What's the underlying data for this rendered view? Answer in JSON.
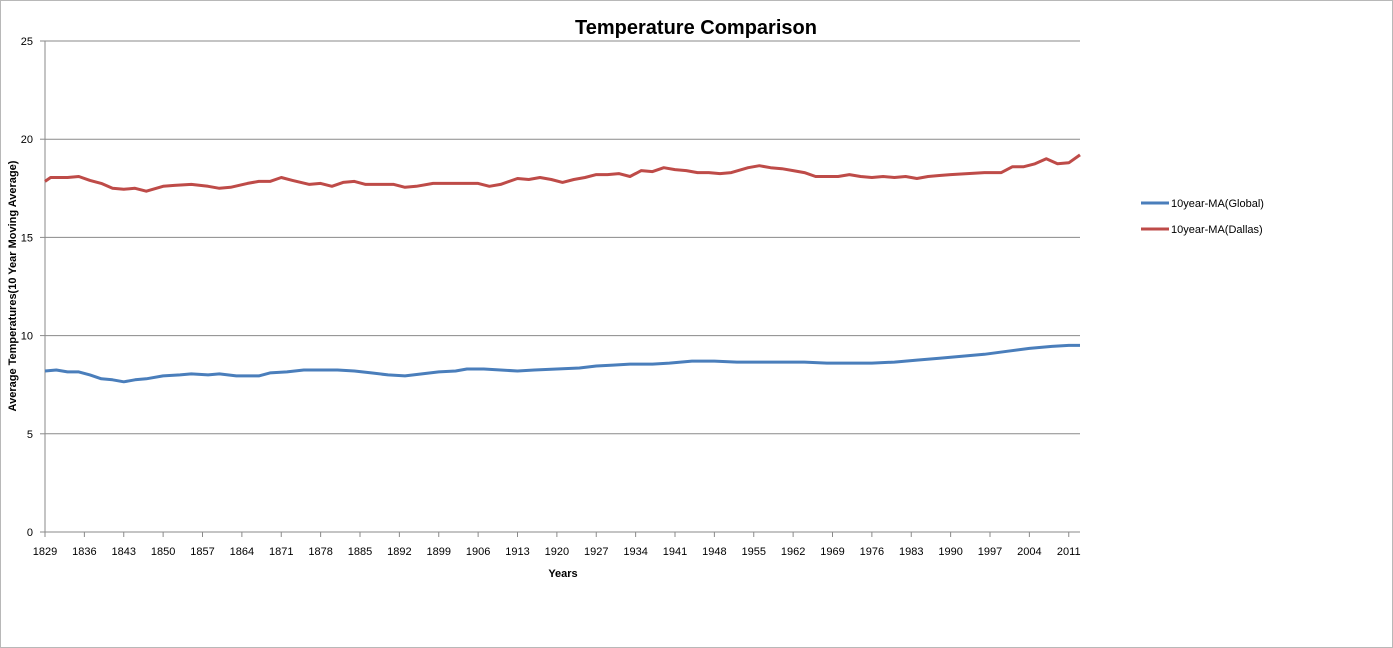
{
  "chart_data": {
    "type": "line",
    "title": "Temperature Comparison",
    "xlabel": "Years",
    "ylabel": "Average Temperatures(10 Year Moving Average)",
    "ylim": [
      0,
      25
    ],
    "yticks": [
      "0",
      "5",
      "10",
      "15",
      "20",
      "25"
    ],
    "xlim": [
      1829,
      2013
    ],
    "xticks": [
      "1829",
      "1836",
      "1843",
      "1850",
      "1857",
      "1864",
      "1871",
      "1878",
      "1885",
      "1892",
      "1899",
      "1906",
      "1913",
      "1920",
      "1927",
      "1934",
      "1941",
      "1948",
      "1955",
      "1962",
      "1969",
      "1976",
      "1983",
      "1990",
      "1997",
      "2004",
      "2011"
    ],
    "grid": "horizontal",
    "legend": "right",
    "series": [
      {
        "name": "10year-MA(Global)",
        "color": "#4a7ebb",
        "points": [
          [
            1829,
            8.2
          ],
          [
            1831,
            8.25
          ],
          [
            1833,
            8.15
          ],
          [
            1835,
            8.15
          ],
          [
            1837,
            8.0
          ],
          [
            1839,
            7.8
          ],
          [
            1841,
            7.75
          ],
          [
            1843,
            7.65
          ],
          [
            1845,
            7.75
          ],
          [
            1847,
            7.8
          ],
          [
            1850,
            7.95
          ],
          [
            1853,
            8.0
          ],
          [
            1855,
            8.05
          ],
          [
            1858,
            8.0
          ],
          [
            1860,
            8.05
          ],
          [
            1863,
            7.95
          ],
          [
            1867,
            7.95
          ],
          [
            1869,
            8.1
          ],
          [
            1872,
            8.15
          ],
          [
            1875,
            8.25
          ],
          [
            1878,
            8.25
          ],
          [
            1881,
            8.25
          ],
          [
            1884,
            8.2
          ],
          [
            1887,
            8.1
          ],
          [
            1890,
            8.0
          ],
          [
            1893,
            7.95
          ],
          [
            1896,
            8.05
          ],
          [
            1899,
            8.15
          ],
          [
            1902,
            8.2
          ],
          [
            1904,
            8.3
          ],
          [
            1907,
            8.3
          ],
          [
            1910,
            8.25
          ],
          [
            1913,
            8.2
          ],
          [
            1916,
            8.25
          ],
          [
            1920,
            8.3
          ],
          [
            1924,
            8.35
          ],
          [
            1927,
            8.45
          ],
          [
            1930,
            8.5
          ],
          [
            1933,
            8.55
          ],
          [
            1937,
            8.55
          ],
          [
            1940,
            8.6
          ],
          [
            1944,
            8.7
          ],
          [
            1948,
            8.7
          ],
          [
            1952,
            8.65
          ],
          [
            1956,
            8.65
          ],
          [
            1960,
            8.65
          ],
          [
            1964,
            8.65
          ],
          [
            1968,
            8.6
          ],
          [
            1972,
            8.6
          ],
          [
            1976,
            8.6
          ],
          [
            1980,
            8.65
          ],
          [
            1984,
            8.75
          ],
          [
            1988,
            8.85
          ],
          [
            1992,
            8.95
          ],
          [
            1996,
            9.05
          ],
          [
            2000,
            9.2
          ],
          [
            2004,
            9.35
          ],
          [
            2008,
            9.45
          ],
          [
            2011,
            9.5
          ],
          [
            2013,
            9.5
          ]
        ]
      },
      {
        "name": "10year-MA(Dallas)",
        "color": "#be4b48",
        "points": [
          [
            1829,
            17.85
          ],
          [
            1830,
            18.05
          ],
          [
            1833,
            18.05
          ],
          [
            1835,
            18.1
          ],
          [
            1837,
            17.9
          ],
          [
            1839,
            17.75
          ],
          [
            1841,
            17.5
          ],
          [
            1843,
            17.45
          ],
          [
            1845,
            17.5
          ],
          [
            1847,
            17.35
          ],
          [
            1850,
            17.6
          ],
          [
            1852,
            17.65
          ],
          [
            1855,
            17.7
          ],
          [
            1858,
            17.6
          ],
          [
            1860,
            17.5
          ],
          [
            1862,
            17.55
          ],
          [
            1865,
            17.75
          ],
          [
            1867,
            17.85
          ],
          [
            1869,
            17.85
          ],
          [
            1871,
            18.05
          ],
          [
            1873,
            17.9
          ],
          [
            1876,
            17.7
          ],
          [
            1878,
            17.75
          ],
          [
            1880,
            17.6
          ],
          [
            1882,
            17.8
          ],
          [
            1884,
            17.85
          ],
          [
            1886,
            17.7
          ],
          [
            1889,
            17.7
          ],
          [
            1891,
            17.7
          ],
          [
            1893,
            17.55
          ],
          [
            1895,
            17.6
          ],
          [
            1898,
            17.75
          ],
          [
            1900,
            17.75
          ],
          [
            1903,
            17.75
          ],
          [
            1906,
            17.75
          ],
          [
            1908,
            17.6
          ],
          [
            1910,
            17.7
          ],
          [
            1913,
            18.0
          ],
          [
            1915,
            17.95
          ],
          [
            1917,
            18.05
          ],
          [
            1919,
            17.95
          ],
          [
            1921,
            17.8
          ],
          [
            1923,
            17.95
          ],
          [
            1925,
            18.05
          ],
          [
            1927,
            18.2
          ],
          [
            1929,
            18.2
          ],
          [
            1931,
            18.25
          ],
          [
            1933,
            18.1
          ],
          [
            1935,
            18.4
          ],
          [
            1937,
            18.35
          ],
          [
            1939,
            18.55
          ],
          [
            1941,
            18.45
          ],
          [
            1943,
            18.4
          ],
          [
            1945,
            18.3
          ],
          [
            1947,
            18.3
          ],
          [
            1949,
            18.25
          ],
          [
            1951,
            18.3
          ],
          [
            1954,
            18.55
          ],
          [
            1956,
            18.65
          ],
          [
            1958,
            18.55
          ],
          [
            1960,
            18.5
          ],
          [
            1962,
            18.4
          ],
          [
            1964,
            18.3
          ],
          [
            1966,
            18.1
          ],
          [
            1968,
            18.1
          ],
          [
            1970,
            18.1
          ],
          [
            1972,
            18.2
          ],
          [
            1974,
            18.1
          ],
          [
            1976,
            18.05
          ],
          [
            1978,
            18.1
          ],
          [
            1980,
            18.05
          ],
          [
            1982,
            18.1
          ],
          [
            1984,
            18.0
          ],
          [
            1986,
            18.1
          ],
          [
            1988,
            18.15
          ],
          [
            1990,
            18.2
          ],
          [
            1993,
            18.25
          ],
          [
            1996,
            18.3
          ],
          [
            1999,
            18.3
          ],
          [
            2001,
            18.6
          ],
          [
            2003,
            18.6
          ],
          [
            2005,
            18.75
          ],
          [
            2007,
            19.0
          ],
          [
            2009,
            18.75
          ],
          [
            2011,
            18.8
          ],
          [
            2013,
            19.2
          ]
        ]
      }
    ]
  }
}
